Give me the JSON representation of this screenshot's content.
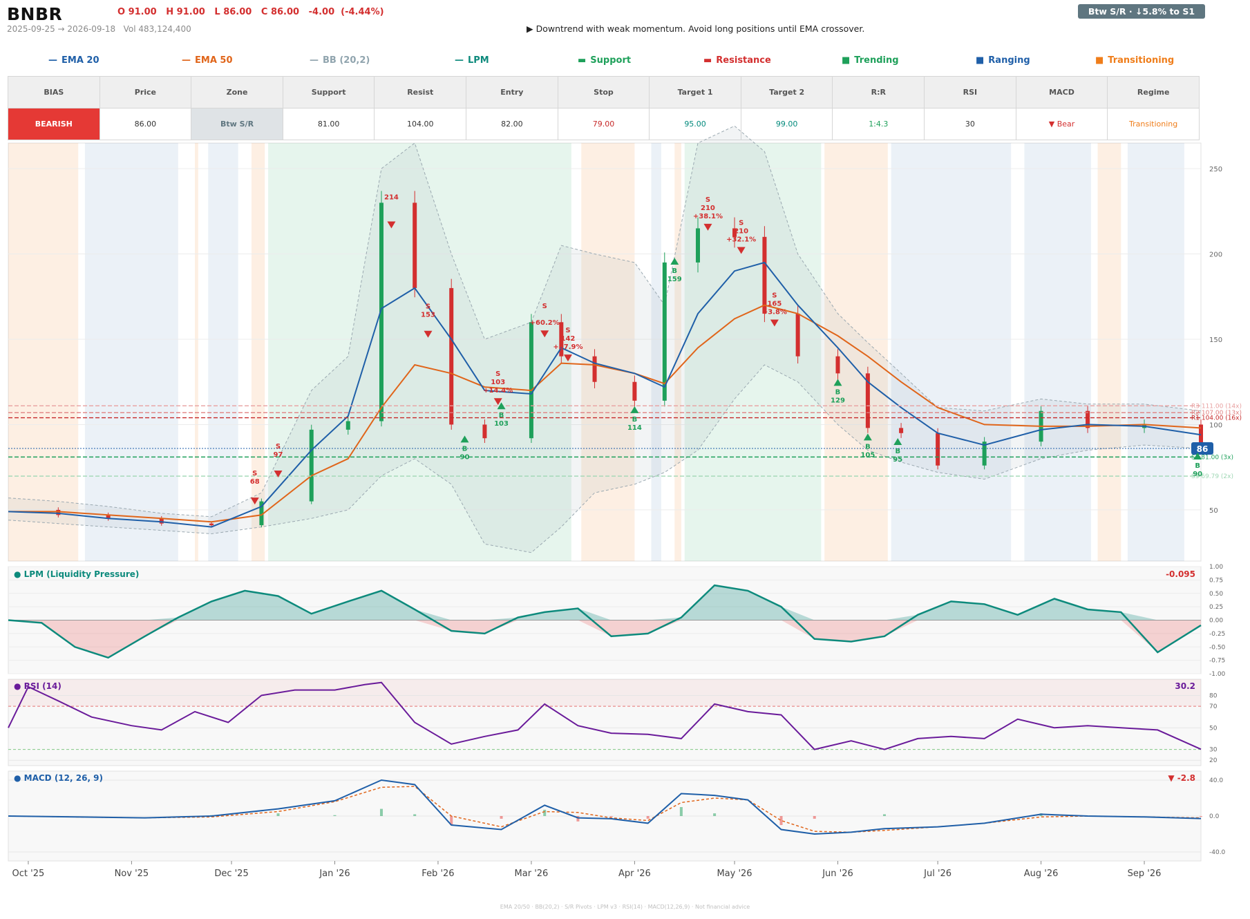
{
  "header": {
    "ticker": "BNBR",
    "ohlc": "O 91.00   H 91.00   L 86.00   C 86.00   -4.00  (-4.44%)",
    "range": "2025-09-25 → 2026-09-18   Vol 483,124,400",
    "verdict": "▶  Downtrend with weak momentum. Avoid long positions until EMA crossover.",
    "zone_badge": "Btw S/R  ·  ↓5.8% to S1"
  },
  "legend": [
    {
      "symbol": "—",
      "label": "EMA 20",
      "color": "#1f5fa8"
    },
    {
      "symbol": "—",
      "label": "EMA 50",
      "color": "#e0651a"
    },
    {
      "symbol": "—",
      "label": "BB (20,2)",
      "color": "#90a4ae"
    },
    {
      "symbol": "—",
      "label": "LPM",
      "color": "#0d8a7c"
    },
    {
      "symbol": "▬",
      "label": "Support",
      "color": "#1ea05a"
    },
    {
      "symbol": "▬",
      "label": "Resistance",
      "color": "#d32f2f"
    },
    {
      "symbol": "■",
      "label": "Trending",
      "color": "#1ea05a"
    },
    {
      "symbol": "■",
      "label": "Ranging",
      "color": "#1f5fa8"
    },
    {
      "symbol": "■",
      "label": "Transitioning",
      "color": "#ef7d1a"
    }
  ],
  "table": {
    "headers": [
      "BIAS",
      "Price",
      "Zone",
      "Support",
      "Resist",
      "Entry",
      "Stop",
      "Target 1",
      "Target 2",
      "R:R",
      "RSI",
      "MACD",
      "Regime"
    ],
    "values": [
      "BEARISH",
      "86.00",
      "Btw S/R",
      "81.00",
      "104.00",
      "82.00",
      "79.00",
      "95.00",
      "99.00",
      "1:4.3",
      "30",
      "▼ Bear",
      "Transitioning"
    ],
    "colors": {
      "bias_bg": "#e53935",
      "zone_bg": "#dfe3e6",
      "stop": "#c62828",
      "target": "#00897b",
      "rr": "#1ea05a",
      "macd": "#d32f2f",
      "regime": "#ef7d1a"
    }
  },
  "chart_data": [
    {
      "type": "line",
      "title": "",
      "x": [
        "2025-09-25",
        "2025-10-10",
        "2025-10-25",
        "2025-11-10",
        "2025-11-25",
        "2025-12-10",
        "2025-12-25",
        "2026-01-05",
        "2026-01-15",
        "2026-01-25",
        "2026-02-05",
        "2026-02-15",
        "2026-03-01",
        "2026-03-10",
        "2026-03-20",
        "2026-04-01",
        "2026-04-10",
        "2026-04-20",
        "2026-05-01",
        "2026-05-10",
        "2026-05-20",
        "2026-06-01",
        "2026-06-10",
        "2026-06-20",
        "2026-07-01",
        "2026-07-15",
        "2026-08-01",
        "2026-08-15",
        "2026-09-01",
        "2026-09-18"
      ],
      "series": [
        {
          "name": "EMA 20",
          "values": [
            49,
            48,
            45,
            43,
            40,
            52,
            85,
            105,
            168,
            180,
            150,
            120,
            118,
            145,
            136,
            130,
            122,
            165,
            190,
            195,
            170,
            145,
            125,
            110,
            95,
            88,
            97,
            100,
            99,
            94
          ]
        },
        {
          "name": "EMA 50",
          "values": [
            49,
            49,
            47,
            45,
            43,
            47,
            70,
            80,
            110,
            135,
            130,
            122,
            120,
            136,
            135,
            130,
            124,
            145,
            162,
            170,
            165,
            152,
            140,
            125,
            110,
            100,
            99,
            99,
            100,
            98
          ]
        },
        {
          "name": "BB upper",
          "values": [
            57,
            55,
            52,
            48,
            46,
            60,
            120,
            140,
            250,
            265,
            200,
            150,
            160,
            205,
            200,
            195,
            170,
            265,
            275,
            260,
            200,
            165,
            148,
            130,
            110,
            108,
            115,
            112,
            112,
            108
          ]
        },
        {
          "name": "BB lower",
          "values": [
            44,
            42,
            40,
            38,
            36,
            40,
            45,
            50,
            70,
            80,
            65,
            30,
            25,
            40,
            60,
            65,
            72,
            85,
            115,
            135,
            125,
            100,
            85,
            78,
            72,
            68,
            80,
            85,
            88,
            86
          ]
        },
        {
          "name": "Close",
          "values": [
            50,
            47,
            45,
            42,
            41,
            55,
            97,
            102,
            230,
            180,
            100,
            92,
            160,
            140,
            125,
            114,
            195,
            215,
            210,
            165,
            140,
            130,
            98,
            95,
            76,
            90,
            108,
            98,
            100,
            86
          ]
        }
      ],
      "ylim": [
        20,
        265
      ],
      "yticks": [
        50,
        100,
        150,
        200,
        250
      ],
      "xticks": [
        "Oct '25",
        "Nov '25",
        "Dec '25",
        "Jan '26",
        "Feb '26",
        "Mar '26",
        "Apr '26",
        "May '26",
        "Jun '26",
        "Jul '26",
        "Aug '26",
        "Sep '26"
      ],
      "levels": [
        {
          "label": "R3 111.00 (14x)",
          "value": 111,
          "color": "#e8a0a0"
        },
        {
          "label": "R2 107.00 (13x)",
          "value": 107,
          "color": "#e08080"
        },
        {
          "label": "R1 104.00 (16x)",
          "value": 104,
          "color": "#c62828"
        },
        {
          "label": "S1 81.00 (3x)",
          "value": 81,
          "color": "#1ea05a"
        },
        {
          "label": "S3 69.79 (2x)",
          "value": 69.79,
          "color": "#9fd7b4"
        }
      ],
      "last_price": "86",
      "regimes": [
        {
          "from": "2025-09-25",
          "to": "2025-10-16",
          "kind": "Transitioning"
        },
        {
          "from": "2025-10-18",
          "to": "2025-11-15",
          "kind": "Ranging"
        },
        {
          "from": "2025-11-20",
          "to": "2025-11-21",
          "kind": "Transitioning"
        },
        {
          "from": "2025-11-24",
          "to": "2025-12-03",
          "kind": "Ranging"
        },
        {
          "from": "2025-12-07",
          "to": "2025-12-11",
          "kind": "Transitioning"
        },
        {
          "from": "2025-12-12",
          "to": "2026-03-13",
          "kind": "Trending"
        },
        {
          "from": "2026-03-16",
          "to": "2026-04-01",
          "kind": "Transitioning"
        },
        {
          "from": "2026-04-06",
          "to": "2026-04-09",
          "kind": "Ranging"
        },
        {
          "from": "2026-04-13",
          "to": "2026-04-15",
          "kind": "Transitioning"
        },
        {
          "from": "2026-04-16",
          "to": "2026-05-27",
          "kind": "Trending"
        },
        {
          "from": "2026-05-28",
          "to": "2026-06-16",
          "kind": "Transitioning"
        },
        {
          "from": "2026-06-17",
          "to": "2026-07-23",
          "kind": "Ranging"
        },
        {
          "from": "2026-07-27",
          "to": "2026-08-16",
          "kind": "Ranging"
        },
        {
          "from": "2026-08-18",
          "to": "2026-08-25",
          "kind": "Transitioning"
        },
        {
          "from": "2026-08-27",
          "to": "2026-09-13",
          "kind": "Ranging"
        }
      ],
      "signals": [
        {
          "date": "2025-12-08",
          "type": "S",
          "lines": [
            "S",
            "68"
          ]
        },
        {
          "date": "2025-12-15",
          "type": "S",
          "lines": [
            "S",
            "97"
          ]
        },
        {
          "date": "2026-01-18",
          "type": "S",
          "lines": [
            "214"
          ]
        },
        {
          "date": "2026-01-29",
          "type": "S",
          "lines": [
            "S",
            "153"
          ]
        },
        {
          "date": "2026-02-09",
          "type": "B",
          "lines": [
            "B",
            "90"
          ]
        },
        {
          "date": "2026-02-20",
          "type": "B",
          "lines": [
            "B",
            "103"
          ]
        },
        {
          "date": "2026-02-19",
          "type": "S",
          "lines": [
            "S",
            "103",
            "+14.4%"
          ]
        },
        {
          "date": "2026-03-05",
          "type": "S",
          "lines": [
            "S",
            "",
            "+60.2%"
          ]
        },
        {
          "date": "2026-03-12",
          "type": "S",
          "lines": [
            "S",
            "142",
            "+37.9%"
          ]
        },
        {
          "date": "2026-04-01",
          "type": "B",
          "lines": [
            "B",
            "114"
          ]
        },
        {
          "date": "2026-04-13",
          "type": "B",
          "lines": [
            "B",
            "159"
          ]
        },
        {
          "date": "2026-04-23",
          "type": "S",
          "lines": [
            "S",
            "210",
            "+38.1%"
          ]
        },
        {
          "date": "2026-05-03",
          "type": "S",
          "lines": [
            "S",
            "210",
            "+32.1%"
          ]
        },
        {
          "date": "2026-05-13",
          "type": "S",
          "lines": [
            "S",
            "165",
            "+3.8%"
          ]
        },
        {
          "date": "2026-06-01",
          "type": "B",
          "lines": [
            "B",
            "129"
          ]
        },
        {
          "date": "2026-06-10",
          "type": "B",
          "lines": [
            "B",
            "105"
          ]
        },
        {
          "date": "2026-06-19",
          "type": "B",
          "lines": [
            "B",
            "95"
          ]
        },
        {
          "date": "2026-09-17",
          "type": "B",
          "lines": [
            "B",
            "90"
          ]
        }
      ]
    },
    {
      "type": "area",
      "title": "LPM (Liquidity Pressure)",
      "last_value": "-0.095",
      "ylim": [
        -1.0,
        1.0
      ],
      "yticks": [
        1.0,
        0.75,
        0.5,
        0.25,
        0.0,
        -0.25,
        -0.5,
        -0.75,
        -1.0
      ],
      "x": [
        "2025-09-25",
        "2025-10-05",
        "2025-10-15",
        "2025-10-25",
        "2025-11-05",
        "2025-11-15",
        "2025-11-25",
        "2025-12-05",
        "2025-12-15",
        "2025-12-25",
        "2026-01-05",
        "2026-01-15",
        "2026-01-25",
        "2026-02-05",
        "2026-02-15",
        "2026-02-25",
        "2026-03-05",
        "2026-03-15",
        "2026-03-25",
        "2026-04-05",
        "2026-04-15",
        "2026-04-25",
        "2026-05-05",
        "2026-05-15",
        "2026-05-25",
        "2026-06-05",
        "2026-06-15",
        "2026-06-25",
        "2026-07-05",
        "2026-07-15",
        "2026-07-25",
        "2026-08-05",
        "2026-08-15",
        "2026-08-25",
        "2026-09-05",
        "2026-09-18"
      ],
      "values": [
        0.0,
        -0.05,
        -0.5,
        -0.7,
        -0.3,
        0.05,
        0.35,
        0.55,
        0.45,
        0.12,
        0.35,
        0.55,
        0.2,
        -0.2,
        -0.25,
        0.05,
        0.15,
        0.22,
        -0.3,
        -0.25,
        0.05,
        0.65,
        0.55,
        0.25,
        -0.35,
        -0.4,
        -0.3,
        0.1,
        0.35,
        0.3,
        0.1,
        0.4,
        0.2,
        0.15,
        -0.6,
        -0.095
      ]
    },
    {
      "type": "line",
      "title": "RSI (14)",
      "last_value": "30.2",
      "ylim": [
        15,
        95
      ],
      "yticks": [
        80,
        70,
        50,
        30,
        20
      ],
      "x": [
        "2025-09-25",
        "2025-10-01",
        "2025-10-10",
        "2025-10-20",
        "2025-11-01",
        "2025-11-10",
        "2025-11-20",
        "2025-11-30",
        "2025-12-10",
        "2025-12-20",
        "2026-01-01",
        "2026-01-10",
        "2026-01-15",
        "2026-01-25",
        "2026-02-05",
        "2026-02-15",
        "2026-02-25",
        "2026-03-05",
        "2026-03-15",
        "2026-03-25",
        "2026-04-05",
        "2026-04-15",
        "2026-04-25",
        "2026-05-05",
        "2026-05-15",
        "2026-05-25",
        "2026-06-05",
        "2026-06-15",
        "2026-06-25",
        "2026-07-05",
        "2026-07-15",
        "2026-07-25",
        "2026-08-05",
        "2026-08-15",
        "2026-08-25",
        "2026-09-05",
        "2026-09-18"
      ],
      "values": [
        50,
        88,
        75,
        60,
        52,
        48,
        65,
        55,
        80,
        85,
        85,
        90,
        92,
        55,
        35,
        42,
        48,
        72,
        52,
        45,
        44,
        40,
        72,
        65,
        62,
        30,
        38,
        30,
        40,
        42,
        40,
        58,
        50,
        52,
        50,
        48,
        30.2
      ]
    },
    {
      "type": "line",
      "title": "MACD (12, 26, 9)",
      "last_value": "▼ -2.8",
      "ylim": [
        -50,
        50
      ],
      "yticks": [
        40.0,
        0.0,
        -40.0
      ],
      "x": [
        "2025-09-25",
        "2025-10-15",
        "2025-11-05",
        "2025-11-25",
        "2025-12-15",
        "2026-01-01",
        "2026-01-15",
        "2026-01-25",
        "2026-02-05",
        "2026-02-20",
        "2026-03-05",
        "2026-03-15",
        "2026-03-25",
        "2026-04-05",
        "2026-04-15",
        "2026-04-25",
        "2026-05-05",
        "2026-05-15",
        "2026-05-25",
        "2026-06-05",
        "2026-06-15",
        "2026-07-01",
        "2026-07-15",
        "2026-08-01",
        "2026-08-15",
        "2026-09-01",
        "2026-09-18"
      ],
      "series": [
        {
          "name": "MACD",
          "values": [
            0,
            -1,
            -2,
            0,
            8,
            17,
            40,
            35,
            -10,
            -15,
            12,
            -2,
            -3,
            -8,
            25,
            23,
            18,
            -15,
            -20,
            -18,
            -14,
            -12,
            -8,
            2,
            0,
            -1,
            -2.8
          ]
        },
        {
          "name": "Signal",
          "values": [
            0,
            -1,
            -2,
            -1,
            5,
            16,
            32,
            33,
            0,
            -12,
            5,
            4,
            -2,
            -5,
            15,
            20,
            18,
            -5,
            -17,
            -18,
            -16,
            -12,
            -8,
            -1,
            0,
            -1,
            -2
          ]
        },
        {
          "name": "Histogram",
          "values": [
            0,
            0,
            0,
            1,
            3,
            1,
            8,
            2,
            -10,
            -3,
            7,
            -6,
            -1,
            -3,
            10,
            3,
            0,
            -10,
            -3,
            0,
            2,
            0,
            0,
            3,
            0,
            0,
            -0.8
          ]
        }
      ]
    }
  ],
  "footer": "EMA 20/50  ·  BB(20,2)  ·  S/R Pivots  ·  LPM v3  ·  RSI(14)  ·  MACD(12,26,9)  ·  Not financial advice"
}
